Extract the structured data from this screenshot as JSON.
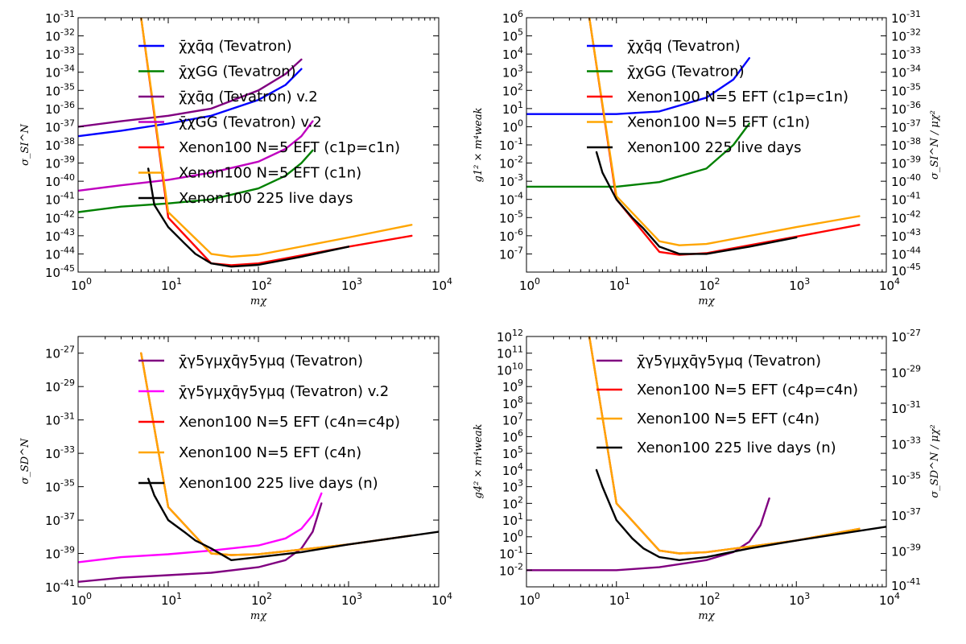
{
  "chart_data": [
    {
      "type": "line",
      "xlabel": "mχ",
      "ylabel": "σ_SI^N",
      "x_scale": "log",
      "y_scale": "log",
      "xlim": [
        1,
        10000
      ],
      "ylim": [
        1e-45,
        1e-31
      ],
      "x_ticks": [
        [
          1,
          "10"
        ],
        [
          10,
          "10"
        ],
        [
          100,
          "10"
        ],
        [
          1000,
          "10"
        ],
        [
          10000,
          "10"
        ]
      ],
      "x_tick_exps": [
        "0",
        "1",
        "2",
        "3",
        "4"
      ],
      "y_ticks": [
        1e-45,
        1e-44,
        1e-43,
        1e-42,
        1e-41,
        1e-40,
        1e-39,
        1e-38,
        1e-37,
        1e-36,
        1e-35,
        1e-34,
        1e-33,
        1e-32,
        1e-31
      ],
      "y_tick_exps": [
        "-45",
        "-44",
        "-43",
        "-42",
        "-41",
        "-40",
        "-39",
        "-38",
        "-37",
        "-36",
        "-35",
        "-34",
        "-33",
        "-32",
        "-31"
      ],
      "legend": "top-center",
      "series": [
        {
          "name": "χ̄χq̄q (Tevatron)",
          "color": "#0000ff",
          "x": [
            1,
            3,
            10,
            30,
            100,
            200,
            300
          ],
          "y": [
            3e-38,
            6e-38,
            1.5e-37,
            4e-37,
            3e-36,
            2e-35,
            1.5e-34
          ]
        },
        {
          "name": "χ̄χGG (Tevatron)",
          "color": "#008000",
          "x": [
            1,
            3,
            10,
            30,
            100,
            200,
            300,
            400
          ],
          "y": [
            2e-42,
            4e-42,
            6e-42,
            1e-41,
            4e-41,
            2e-40,
            1e-39,
            5e-39
          ]
        },
        {
          "name": "χ̄χq̄q (Tevatron) v.2",
          "color": "#800080",
          "x": [
            1,
            3,
            10,
            30,
            100,
            200,
            300
          ],
          "y": [
            1e-37,
            2e-37,
            4e-37,
            1e-36,
            1e-35,
            8e-35,
            5e-34
          ]
        },
        {
          "name": "χ̄χGG (Tevatron) v.2",
          "color": "#bf00bf",
          "x": [
            1,
            3,
            10,
            30,
            100,
            200,
            300,
            400
          ],
          "y": [
            3e-41,
            6e-41,
            1.2e-40,
            3e-40,
            1.2e-39,
            6e-39,
            3e-38,
            2e-37
          ]
        },
        {
          "name": "Xenon100 N=5 EFT (c1p=c1n)",
          "color": "#ff0000",
          "x": [
            5,
            10,
            30,
            50,
            100,
            1000,
            5000
          ],
          "y": [
            1e-31,
            1e-42,
            3e-45,
            2.4e-45,
            3e-45,
            2.5e-44,
            1e-43
          ]
        },
        {
          "name": "Xenon100 N=5 EFT (c1n)",
          "color": "#ffa500",
          "x": [
            5,
            10,
            30,
            50,
            100,
            1000,
            5000
          ],
          "y": [
            1e-31,
            2e-42,
            1e-44,
            7e-45,
            9e-45,
            8e-44,
            4e-43
          ]
        },
        {
          "name": "Xenon100 225 live days",
          "color": "#000000",
          "x": [
            6,
            7,
            10,
            15,
            20,
            30,
            50,
            100,
            300,
            1000
          ],
          "y": [
            5e-40,
            5e-42,
            3e-43,
            4e-44,
            1e-44,
            3e-45,
            2e-45,
            2.5e-45,
            7e-45,
            2.5e-44
          ]
        }
      ]
    },
    {
      "type": "line",
      "xlabel": "mχ",
      "ylabel": "g1² × m⁴weak",
      "ylabel_right": "σ_SI^N / μχ²",
      "x_scale": "log",
      "y_scale": "log",
      "xlim": [
        1,
        10000
      ],
      "ylim": [
        1e-08,
        1000000.0
      ],
      "x_ticks": [
        [
          1,
          "10"
        ],
        [
          10,
          "10"
        ],
        [
          100,
          "10"
        ],
        [
          1000,
          "10"
        ],
        [
          10000,
          "10"
        ]
      ],
      "x_tick_exps": [
        "0",
        "1",
        "2",
        "3",
        "4"
      ],
      "y_ticks": [
        1e-07,
        1e-06,
        1e-05,
        0.0001,
        0.001,
        0.01,
        0.1,
        1,
        10,
        100,
        1000,
        10000.0,
        100000.0,
        1000000.0
      ],
      "y_tick_exps": [
        "-7",
        "-6",
        "-5",
        "-4",
        "-3",
        "-2",
        "-1",
        "0",
        "1",
        "2",
        "3",
        "4",
        "5",
        "6"
      ],
      "right_ticks_exps": [
        "-45",
        "-44",
        "-43",
        "-42",
        "-41",
        "-40",
        "-39",
        "-38",
        "-37",
        "-36",
        "-35",
        "-34",
        "-33",
        "-32",
        "-31"
      ],
      "legend": "top-center",
      "series": [
        {
          "name": "χ̄χq̄q (Tevatron)",
          "color": "#0000ff",
          "x": [
            1,
            3,
            10,
            30,
            100,
            200,
            300
          ],
          "y": [
            5,
            5,
            5,
            7,
            40,
            400,
            6000
          ]
        },
        {
          "name": "χ̄χGG (Tevatron)",
          "color": "#008000",
          "x": [
            1,
            3,
            10,
            30,
            100,
            200,
            300
          ],
          "y": [
            0.0005,
            0.0005,
            0.0005,
            0.0009,
            0.005,
            0.1,
            1.5
          ]
        },
        {
          "name": "Xenon100 N=5 EFT (c1p=c1n)",
          "color": "#ff0000",
          "x": [
            5,
            10,
            30,
            50,
            100,
            1000,
            5000
          ],
          "y": [
            1000000.0,
            0.0001,
            1.3e-07,
            9e-08,
            1.1e-07,
            9e-07,
            4e-06
          ]
        },
        {
          "name": "Xenon100 N=5 EFT (c1n)",
          "color": "#ffa500",
          "x": [
            5,
            10,
            30,
            50,
            100,
            1000,
            5000
          ],
          "y": [
            1000000.0,
            0.00015,
            5e-07,
            3e-07,
            3.5e-07,
            3e-06,
            1.2e-05
          ]
        },
        {
          "name": "Xenon100 225 live days",
          "color": "#000000",
          "x": [
            6,
            7,
            10,
            15,
            20,
            30,
            50,
            100,
            300,
            1000
          ],
          "y": [
            0.04,
            0.003,
            0.0001,
            1e-05,
            2.5e-06,
            2.5e-07,
            1e-07,
            1e-07,
            2.5e-07,
            8e-07
          ]
        }
      ]
    },
    {
      "type": "line",
      "xlabel": "mχ",
      "ylabel": "σ_SD^N",
      "x_scale": "log",
      "y_scale": "log",
      "xlim": [
        1,
        10000
      ],
      "ylim": [
        1e-41,
        1e-26
      ],
      "x_ticks": [
        [
          1,
          "10"
        ],
        [
          10,
          "10"
        ],
        [
          100,
          "10"
        ],
        [
          1000,
          "10"
        ],
        [
          10000,
          "10"
        ]
      ],
      "x_tick_exps": [
        "0",
        "1",
        "2",
        "3",
        "4"
      ],
      "y_ticks": [
        1e-41,
        1e-39,
        1e-37,
        1e-35,
        1e-33,
        1e-31,
        1e-29,
        1e-27
      ],
      "y_tick_exps": [
        "-41",
        "-39",
        "-37",
        "-35",
        "-33",
        "-31",
        "-29",
        "-27"
      ],
      "legend": "top-center",
      "series": [
        {
          "name": "χ̄γ5γμχq̄γ5γμq (Tevatron)",
          "color": "#800080",
          "x": [
            1,
            3,
            10,
            30,
            100,
            200,
            300,
            400,
            500
          ],
          "y": [
            2e-41,
            3.5e-41,
            5e-41,
            7e-41,
            1.5e-40,
            4e-40,
            2e-39,
            2e-38,
            1e-36
          ]
        },
        {
          "name": "χ̄γ5γμχq̄γ5γμq (Tevatron) v.2",
          "color": "#ff00ff",
          "x": [
            1,
            3,
            10,
            30,
            100,
            200,
            300,
            400,
            500
          ],
          "y": [
            3e-40,
            6e-40,
            9e-40,
            1.5e-39,
            3e-39,
            8e-39,
            3e-38,
            2e-37,
            4e-36
          ]
        },
        {
          "name": "Xenon100 N=5 EFT (c4n=c4p)",
          "color": "#ff0000",
          "x": [
            5,
            10,
            30,
            50,
            100,
            1000,
            5000
          ],
          "y": [
            1e-27,
            6e-37,
            1e-39,
            8e-40,
            9e-40,
            3.5e-39,
            1.2e-38
          ]
        },
        {
          "name": "Xenon100 N=5 EFT (c4n)",
          "color": "#ffa500",
          "x": [
            5,
            10,
            30,
            50,
            100,
            1000,
            5000
          ],
          "y": [
            1e-27,
            6e-37,
            1e-39,
            8e-40,
            9e-40,
            3.5e-39,
            1.2e-38
          ]
        },
        {
          "name": "Xenon100 225 live days (n)",
          "color": "#000000",
          "x": [
            6,
            7,
            10,
            15,
            20,
            30,
            50,
            100,
            300,
            1000,
            10000
          ],
          "y": [
            3e-35,
            3e-36,
            1e-37,
            2e-38,
            6e-39,
            2e-39,
            4e-40,
            6e-40,
            1.2e-39,
            3.5e-39,
            2e-38
          ]
        }
      ]
    },
    {
      "type": "line",
      "xlabel": "mχ",
      "ylabel": "g4² × m⁴weak",
      "ylabel_right": "σ_SD^N / μχ²",
      "x_scale": "log",
      "y_scale": "log",
      "xlim": [
        1,
        10000
      ],
      "ylim": [
        0.001,
        1000000000000.0
      ],
      "x_ticks": [
        [
          1,
          "10"
        ],
        [
          10,
          "10"
        ],
        [
          100,
          "10"
        ],
        [
          1000,
          "10"
        ],
        [
          10000,
          "10"
        ]
      ],
      "x_tick_exps": [
        "0",
        "1",
        "2",
        "3",
        "4"
      ],
      "y_ticks": [
        0.01,
        0.1,
        1,
        10,
        100,
        1000,
        10000.0,
        100000.0,
        1000000.0,
        10000000.0,
        100000000.0,
        1000000000.0,
        10000000000.0,
        100000000000.0,
        1000000000000.0
      ],
      "y_tick_exps": [
        "-2",
        "-1",
        "0",
        "1",
        "2",
        "3",
        "4",
        "5",
        "6",
        "7",
        "8",
        "9",
        "10",
        "11",
        "12"
      ],
      "right_ticks_exps": [
        "-41",
        "-39",
        "-37",
        "-35",
        "-33",
        "-31",
        "-29",
        "-27"
      ],
      "legend": "top-center",
      "series": [
        {
          "name": "χ̄γ5γμχq̄γ5γμq (Tevatron)",
          "color": "#800080",
          "x": [
            1,
            3,
            10,
            30,
            100,
            200,
            300,
            400,
            500
          ],
          "y": [
            0.01,
            0.01,
            0.01,
            0.015,
            0.04,
            0.12,
            0.5,
            5,
            200
          ]
        },
        {
          "name": "Xenon100 N=5 EFT (c4p=c4n)",
          "color": "#ff0000",
          "x": [
            5,
            10,
            30,
            50,
            100,
            1000,
            5000
          ],
          "y": [
            1000000000000.0,
            100,
            0.15,
            0.1,
            0.12,
            0.6,
            3
          ]
        },
        {
          "name": "Xenon100 N=5 EFT (c4n)",
          "color": "#ffa500",
          "x": [
            5,
            10,
            30,
            50,
            100,
            1000,
            5000
          ],
          "y": [
            1000000000000.0,
            100,
            0.15,
            0.1,
            0.12,
            0.6,
            3
          ]
        },
        {
          "name": "Xenon100 225 live days (n)",
          "color": "#000000",
          "x": [
            6,
            7,
            10,
            15,
            20,
            30,
            50,
            100,
            300,
            1000,
            10000
          ],
          "y": [
            10000.0,
            1000.0,
            10,
            0.8,
            0.2,
            0.06,
            0.04,
            0.06,
            0.2,
            0.6,
            4
          ]
        }
      ]
    }
  ]
}
